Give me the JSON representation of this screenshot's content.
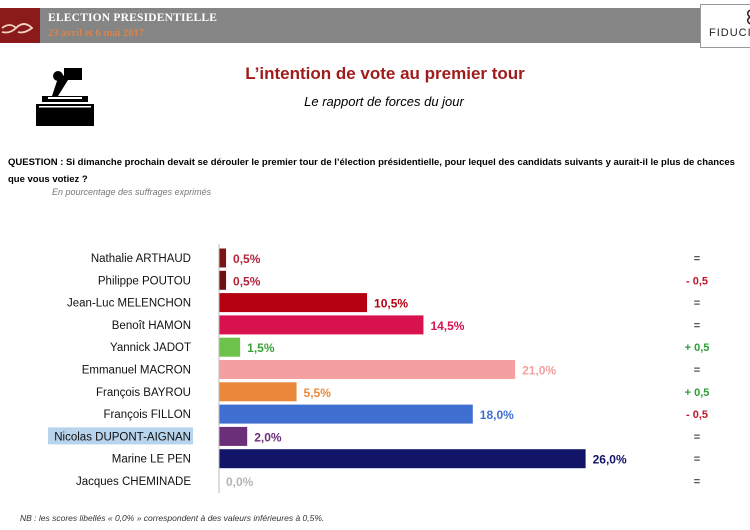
{
  "header": {
    "title": "ELECTION PRESIDENTIELLE",
    "dates": "23 avril et 6 mai 2017",
    "logo_text": "FIDUCI"
  },
  "title": "L’intention de vote au premier tour",
  "subtitle": "Le rapport de forces du jour",
  "question": "QUESTION : Si dimanche prochain devait se dérouler le premier tour de l’élection présidentielle, pour lequel des candidats suivants y aurait-il le plus de chances que vous votiez ?",
  "unit_note": "En pourcentage des suffrages exprimés",
  "footnote": "NB : les scores libellés « 0,0% » correspondent à des valeurs inférieures à 0,5%.",
  "chart_data": {
    "type": "bar",
    "orientation": "horizontal",
    "categories": [
      "Nathalie ARTHAUD",
      "Philippe POUTOU",
      "Jean-Luc MELENCHON",
      "Benoît HAMON",
      "Yannick JADOT",
      "Emmanuel MACRON",
      "François BAYROU",
      "François FILLON",
      "Nicolas DUPONT-AIGNAN",
      "Marine LE PEN",
      "Jacques CHEMINADE"
    ],
    "values": [
      0.5,
      0.5,
      10.5,
      14.5,
      1.5,
      21.0,
      5.5,
      18.0,
      2.0,
      26.0,
      0.0
    ],
    "value_labels": [
      "0,5%",
      "0,5%",
      "10,5%",
      "14,5%",
      "1,5%",
      "21,0%",
      "5,5%",
      "18,0%",
      "2,0%",
      "26,0%",
      "0,0%"
    ],
    "changes": [
      "=",
      "- 0,5",
      "=",
      "=",
      "+ 0,5",
      "=",
      "+ 0,5",
      "- 0,5",
      "=",
      "=",
      "="
    ],
    "colors": [
      "#7b1515",
      "#6e1010",
      "#b4000f",
      "#d8124e",
      "#6cc24a",
      "#f4a0a0",
      "#e9883a",
      "#3f6fd1",
      "#6b2f7a",
      "#111467",
      "#9a9a9a"
    ],
    "label_colors": [
      "#b3243a",
      "#b3243a",
      "#b4000f",
      "#d8124e",
      "#3aa437",
      "#f4a0a0",
      "#e9883a",
      "#3f6fd1",
      "#6b2f7a",
      "#111467",
      "#b5b5b5"
    ],
    "change_colors": [
      "#555555",
      "#c0182a",
      "#555555",
      "#555555",
      "#2e9e35",
      "#555555",
      "#2e9e35",
      "#c0182a",
      "#555555",
      "#555555",
      "#555555"
    ],
    "highlight_category": "Nicolas DUPONT-AIGNAN"
  }
}
